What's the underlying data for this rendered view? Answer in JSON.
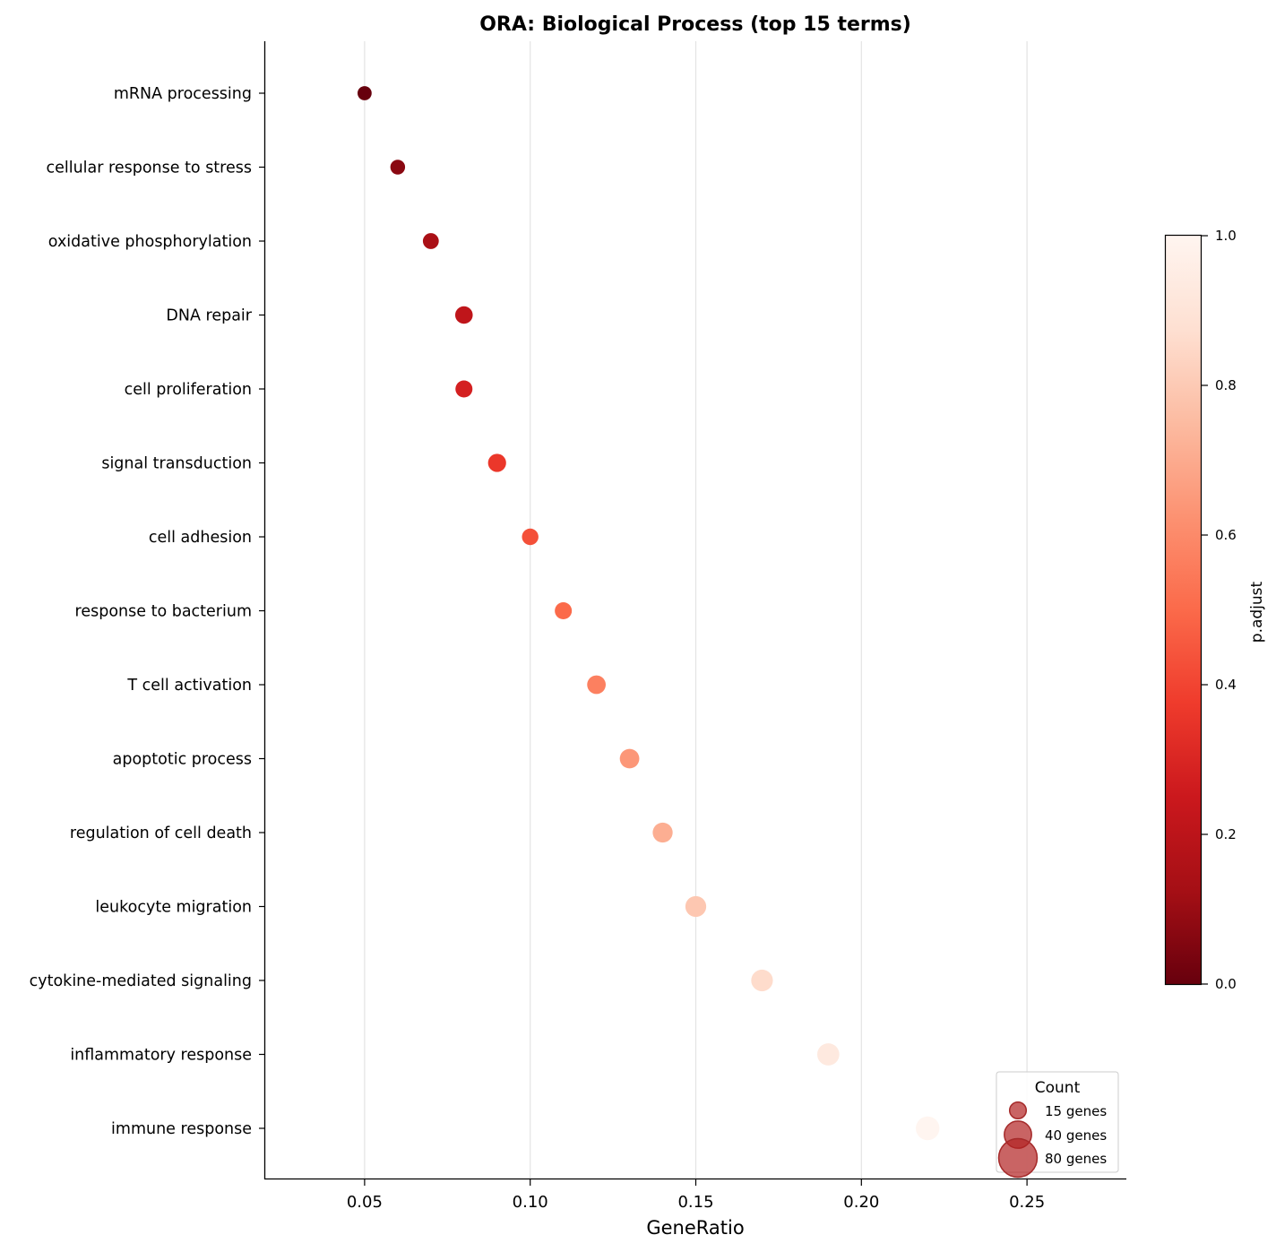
{
  "chart_data": {
    "type": "scatter",
    "title": "ORA: Biological Process (top 15 terms)",
    "xlabel": "GeneRatio",
    "ylabel": "",
    "xlim": [
      0.02,
      0.28
    ],
    "xticks": [
      "0.05",
      "0.10",
      "0.15",
      "0.20",
      "0.25"
    ],
    "xtick_values": [
      0.05,
      0.1,
      0.15,
      0.2,
      0.25
    ],
    "grid": "vertical",
    "terms": [
      {
        "term": "mRNA processing",
        "gene_ratio": 0.05,
        "count": 10,
        "p_adjust": 0.0
      },
      {
        "term": "cellular response to stress",
        "gene_ratio": 0.06,
        "count": 11,
        "p_adjust": 0.07
      },
      {
        "term": "oxidative phosphorylation",
        "gene_ratio": 0.07,
        "count": 13,
        "p_adjust": 0.14
      },
      {
        "term": "DNA repair",
        "gene_ratio": 0.08,
        "count": 16,
        "p_adjust": 0.21
      },
      {
        "term": "cell proliferation",
        "gene_ratio": 0.08,
        "count": 15,
        "p_adjust": 0.28
      },
      {
        "term": "signal transduction",
        "gene_ratio": 0.09,
        "count": 17,
        "p_adjust": 0.36
      },
      {
        "term": "cell adhesion",
        "gene_ratio": 0.1,
        "count": 14,
        "p_adjust": 0.43
      },
      {
        "term": "response to bacterium",
        "gene_ratio": 0.11,
        "count": 15,
        "p_adjust": 0.5
      },
      {
        "term": "T cell activation",
        "gene_ratio": 0.12,
        "count": 18,
        "p_adjust": 0.57
      },
      {
        "term": "apoptotic process",
        "gene_ratio": 0.13,
        "count": 20,
        "p_adjust": 0.64
      },
      {
        "term": "regulation of cell death",
        "gene_ratio": 0.14,
        "count": 21,
        "p_adjust": 0.71
      },
      {
        "term": "leukocyte migration",
        "gene_ratio": 0.15,
        "count": 23,
        "p_adjust": 0.79
      },
      {
        "term": "cytokine-mediated signaling",
        "gene_ratio": 0.17,
        "count": 25,
        "p_adjust": 0.86
      },
      {
        "term": "inflammatory response",
        "gene_ratio": 0.19,
        "count": 26,
        "p_adjust": 0.93
      },
      {
        "term": "immune response",
        "gene_ratio": 0.22,
        "count": 30,
        "p_adjust": 1.0
      }
    ],
    "colorbar": {
      "label": "p.adjust",
      "range": [
        0.0,
        1.0
      ],
      "ticks": [
        "0.0",
        "0.2",
        "0.4",
        "0.6",
        "0.8",
        "1.0"
      ],
      "tick_values": [
        0.0,
        0.2,
        0.4,
        0.6,
        0.8,
        1.0
      ],
      "colormap": "Reds_r",
      "colors": [
        "#67000d",
        "#a50f15",
        "#cb181d",
        "#ef3b2c",
        "#fb6a4a",
        "#fc9272",
        "#fcbba1",
        "#fee0d2",
        "#fff5f0"
      ]
    },
    "legend": {
      "title": "Count",
      "position": "lower-right",
      "entries": [
        {
          "label": "15 genes",
          "count": 15
        },
        {
          "label": "40 genes",
          "count": 40
        },
        {
          "label": "80 genes",
          "count": 80
        }
      ],
      "color": "#b22222"
    }
  }
}
